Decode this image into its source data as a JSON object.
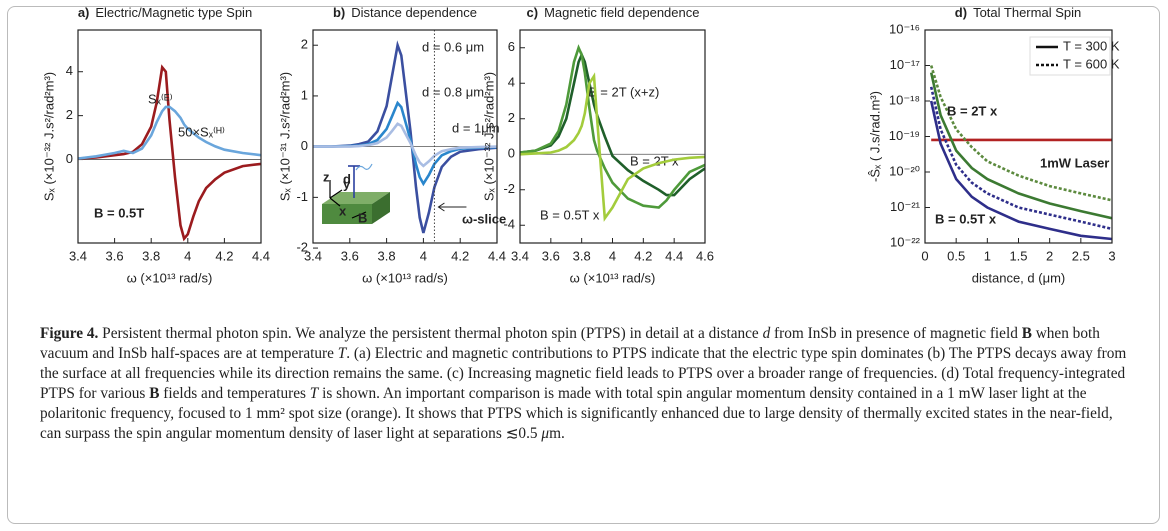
{
  "chart_data": [
    {
      "type": "line",
      "label": "a)",
      "title": "Electric/Magnetic type Spin",
      "xlabel": "ω (×10¹³ rad/s)",
      "ylabel": "Sₓ (×10⁻³² J.s²/rad²m³)",
      "xlim": [
        3.4,
        4.4
      ],
      "xticks": [
        3.4,
        3.6,
        3.8,
        4,
        4.2,
        4.4
      ],
      "ylim": [
        -3.8,
        5.9
      ],
      "yticks": [
        0,
        2,
        4
      ],
      "x": [
        3.4,
        3.5,
        3.6,
        3.65,
        3.7,
        3.75,
        3.8,
        3.83,
        3.86,
        3.88,
        3.9,
        3.93,
        3.96,
        3.98,
        4.0,
        4.03,
        4.06,
        4.1,
        4.15,
        4.2,
        4.3,
        4.4
      ],
      "series": [
        {
          "name": "Sₓ⁽ᴱ⁾",
          "color": "#9b1b1e",
          "values": [
            0.05,
            0.1,
            0.2,
            0.25,
            0.35,
            0.7,
            1.5,
            2.6,
            4.2,
            4.0,
            1.8,
            -0.8,
            -3.0,
            -3.6,
            -3.4,
            -2.6,
            -1.9,
            -1.3,
            -0.9,
            -0.6,
            -0.3,
            -0.2
          ]
        },
        {
          "name": "50×Sₓ⁽ᴴ⁾",
          "color": "#6aa6dc",
          "values": [
            0.05,
            0.15,
            0.3,
            0.4,
            0.3,
            0.5,
            1.1,
            1.7,
            2.2,
            2.4,
            2.4,
            2.2,
            1.9,
            1.6,
            1.4,
            1.2,
            1.0,
            0.8,
            0.6,
            0.45,
            0.3,
            0.2
          ]
        }
      ],
      "annotations": [
        {
          "text": "B = 0.5T",
          "color": "#000000"
        }
      ]
    },
    {
      "type": "line",
      "label": "b)",
      "title": "Distance dependence",
      "xlabel": "ω (×10¹³ rad/s)",
      "ylabel": "Sₓ (×10⁻³¹ J.s²/rad²m³)",
      "xlim": [
        3.4,
        4.4
      ],
      "xticks": [
        3.4,
        3.6,
        3.8,
        4,
        4.2,
        4.4
      ],
      "ylim": [
        -1.9,
        2.3
      ],
      "yticks": [
        -2,
        -1,
        0,
        1,
        2
      ],
      "x": [
        3.4,
        3.5,
        3.6,
        3.65,
        3.7,
        3.75,
        3.8,
        3.83,
        3.86,
        3.88,
        3.9,
        3.93,
        3.96,
        3.98,
        4.0,
        4.03,
        4.06,
        4.1,
        4.15,
        4.2,
        4.3,
        4.4
      ],
      "series": [
        {
          "name": "d = 0.6 μm",
          "color": "#3b4fa0",
          "values": [
            0,
            0,
            0.02,
            0.05,
            0.1,
            0.3,
            0.8,
            1.4,
            2.0,
            1.8,
            1.2,
            0.3,
            -0.8,
            -1.4,
            -1.7,
            -1.3,
            -0.8,
            -0.4,
            -0.2,
            -0.1,
            -0.05,
            -0.02
          ]
        },
        {
          "name": "d = 0.8 μm",
          "color": "#2a86cc",
          "values": [
            0,
            0,
            0.01,
            0.02,
            0.05,
            0.13,
            0.35,
            0.6,
            0.86,
            0.78,
            0.52,
            0.13,
            -0.35,
            -0.6,
            -0.73,
            -0.56,
            -0.34,
            -0.17,
            -0.09,
            -0.04,
            -0.02,
            -0.01
          ]
        },
        {
          "name": "d = 1μm",
          "color": "#a9bde3",
          "values": [
            0,
            0,
            0,
            0.01,
            0.03,
            0.07,
            0.18,
            0.31,
            0.45,
            0.41,
            0.27,
            0.07,
            -0.18,
            -0.31,
            -0.38,
            -0.29,
            -0.18,
            -0.09,
            -0.05,
            -0.02,
            -0.01,
            0
          ]
        }
      ],
      "slice_x": 4.06,
      "annotations": [
        {
          "text": "ω-slice",
          "color": "#000000"
        }
      ],
      "inset_labels": [
        "z",
        "y",
        "x",
        "B",
        "d"
      ]
    },
    {
      "type": "line",
      "label": "c)",
      "title": "Magnetic field dependence",
      "xlabel": "ω (×10¹³ rad/s)",
      "ylabel": "Sₓ (×10⁻³² J.s²/rad²m³)",
      "xlim": [
        3.4,
        4.6
      ],
      "xticks": [
        3.4,
        3.6,
        3.8,
        4,
        4.2,
        4.4,
        4.6
      ],
      "ylim": [
        -5,
        7
      ],
      "yticks": [
        -4,
        -2,
        0,
        2,
        4,
        6
      ],
      "x": [
        3.4,
        3.5,
        3.6,
        3.65,
        3.7,
        3.75,
        3.78,
        3.8,
        3.82,
        3.85,
        3.88,
        3.9,
        3.95,
        4.0,
        4.1,
        4.2,
        4.3,
        4.35,
        4.4,
        4.5,
        4.6
      ],
      "series": [
        {
          "name": "B = 2T (x+z)",
          "color": "#1f5f2a",
          "values": [
            0.1,
            0.2,
            0.5,
            1.0,
            2.0,
            4.0,
            5.2,
            5.6,
            5.2,
            4.0,
            2.8,
            2.2,
            1.0,
            -0.1,
            -0.9,
            -1.5,
            -2.0,
            -2.3,
            -2.3,
            -1.4,
            -0.8
          ]
        },
        {
          "name": "B = 2T x",
          "color": "#4e9a3a",
          "values": [
            0.1,
            0.2,
            0.6,
            1.3,
            2.8,
            5.2,
            6.0,
            5.6,
            4.6,
            2.6,
            0.8,
            0.2,
            -0.8,
            -1.6,
            -2.5,
            -2.9,
            -3.0,
            -2.6,
            -2.0,
            -1.0,
            -0.6
          ]
        },
        {
          "name": "B = 0.5T x",
          "color": "#a3cc3c",
          "values": [
            0,
            0.05,
            0.1,
            0.2,
            0.4,
            0.8,
            1.2,
            1.6,
            2.3,
            4.0,
            4.4,
            2.0,
            -3.6,
            -3.0,
            -1.4,
            -0.8,
            -0.5,
            -0.4,
            -0.3,
            -0.2,
            -0.15
          ]
        }
      ]
    },
    {
      "type": "line",
      "label": "d)",
      "title": "Total Thermal Spin",
      "xlabel": "distance, d  (μm)",
      "ylabel": "-Ŝₓ ( J.s/rad.m³)",
      "log_y": true,
      "xlim": [
        0,
        3
      ],
      "xticks": [
        0,
        0.5,
        1,
        1.5,
        2,
        2.5,
        3
      ],
      "ylim": [
        1e-22,
        1e-16
      ],
      "yticks": [
        {
          "value": 1e-22,
          "label": "10⁻²²"
        },
        {
          "value": 1e-21,
          "label": "10⁻²¹"
        },
        {
          "value": 1e-20,
          "label": "10⁻²⁰"
        },
        {
          "value": 1e-19,
          "label": "10⁻¹⁹"
        },
        {
          "value": 1e-18,
          "label": "10⁻¹⁸"
        },
        {
          "value": 1e-17,
          "label": "10⁻¹⁷"
        },
        {
          "value": 1e-16,
          "label": "10⁻¹⁶"
        }
      ],
      "x": [
        0.1,
        0.25,
        0.5,
        0.75,
        1,
        1.5,
        2,
        2.5,
        3
      ],
      "series": [
        {
          "color": "#b22222",
          "dash": "solid",
          "values": [
            8e-20,
            8e-20,
            8e-20,
            8e-20,
            8e-20,
            8e-20,
            8e-20,
            8e-20,
            8e-20
          ]
        },
        {
          "color": "#3c7a32",
          "dash": "solid",
          "values": [
            6.3e-18,
            4e-19,
            4e-20,
            1.3e-20,
            6.3e-21,
            2.5e-21,
            1.3e-21,
            7.9e-22,
            5e-22
          ]
        },
        {
          "color": "#5c8a3e",
          "dash": "dotted",
          "values": [
            1e-17,
            1.3e-18,
            1.6e-19,
            5e-20,
            2e-20,
            7.9e-21,
            4e-21,
            2.5e-21,
            1.6e-21
          ]
        },
        {
          "color": "#2e2e8a",
          "dash": "solid",
          "values": [
            1e-18,
            6.3e-20,
            6.3e-21,
            2e-21,
            1e-21,
            4e-22,
            2.5e-22,
            1.6e-22,
            1.3e-22
          ]
        },
        {
          "color": "#2e2e8a",
          "dash": "dotted",
          "values": [
            2.5e-18,
            1.6e-19,
            1.6e-20,
            5e-21,
            2.5e-21,
            1e-21,
            6.3e-22,
            4e-22,
            2.5e-22
          ]
        }
      ],
      "legend": [
        {
          "label": "T = 300 K",
          "dash": "solid"
        },
        {
          "label": "T = 600 K",
          "dash": "dotted"
        }
      ],
      "annotations": [
        {
          "text": "B = 2T x",
          "color": "#3c7a32"
        },
        {
          "text": "B = 0.5T x",
          "color": "#2e2e8a"
        },
        {
          "text": "1mW Laser",
          "color": "#8b1a1a"
        }
      ]
    }
  ],
  "caption": {
    "segments": [
      {
        "text": "Figure 4.",
        "style": "bold"
      },
      {
        "text": " Persistent thermal photon spin. We analyze the persistent thermal photon spin (PTPS) in detail at a distance ",
        "style": "plain"
      },
      {
        "text": "d",
        "style": "italic"
      },
      {
        "text": " from InSb in presence of magnetic field ",
        "style": "plain"
      },
      {
        "text": "B",
        "style": "bold"
      },
      {
        "text": " when both vacuum and InSb half-spaces are at temperature ",
        "style": "plain"
      },
      {
        "text": "T",
        "style": "italic"
      },
      {
        "text": ". (a) Electric and magnetic contributions to PTPS indicate that the electric type spin dominates (b) The PTPS decays away from the surface at all frequencies while its direction remains the same. (c) Increasing magnetic field leads to PTPS over a broader range of frequencies. (d) Total frequency-integrated PTPS for various ",
        "style": "plain"
      },
      {
        "text": "B",
        "style": "bold"
      },
      {
        "text": " fields and temperatures ",
        "style": "plain"
      },
      {
        "text": "T",
        "style": "italic"
      },
      {
        "text": " is shown. An important comparison is made with total spin angular momentum density contained in a 1 mW laser light at the polaritonic frequency, focused to 1 mm² spot size (orange). It shows that PTPS which is significantly enhanced due to large density of thermally excited states in the near-field, can surpass the spin angular momentum density of laser light at separations ≲0.5 ",
        "style": "plain"
      },
      {
        "text": "μ",
        "style": "italic"
      },
      {
        "text": "m.",
        "style": "plain"
      }
    ]
  }
}
